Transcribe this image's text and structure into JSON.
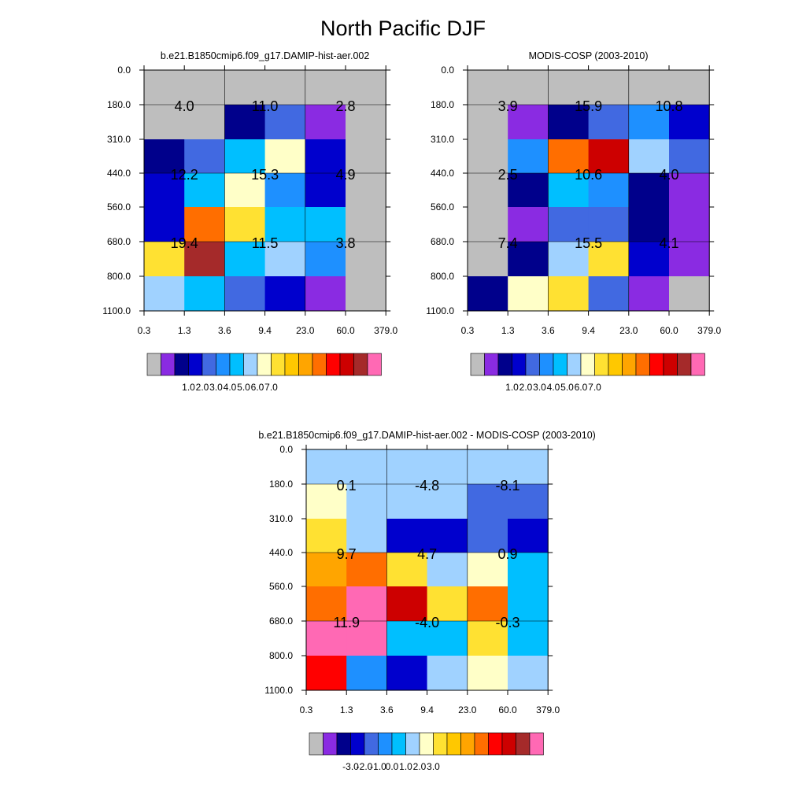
{
  "title": "North Pacific DJF",
  "chart_data": [
    {
      "type": "heatmap",
      "title": "b.e21.B1850cmip6.f09_g17.DAMIP-hist-aer.002",
      "x_ticks": [
        "0.3",
        "1.3",
        "3.6",
        "9.4",
        "23.0",
        "60.0",
        "379.0"
      ],
      "y_ticks": [
        "0.0",
        "180.0",
        "310.0",
        "440.0",
        "560.0",
        "680.0",
        "800.0",
        "1100.0"
      ],
      "cell_colors": [
        [
          "#bebebe",
          "#bebebe",
          "#bebebe",
          "#bebebe",
          "#bebebe",
          "#bebebe"
        ],
        [
          "#bebebe",
          "#bebebe",
          "#00008b",
          "#4169e1",
          "#8a2be2",
          "#bebebe"
        ],
        [
          "#00008b",
          "#4169e1",
          "#00bfff",
          "#ffffc8",
          "#0000cd",
          "#bebebe"
        ],
        [
          "#0000cd",
          "#00bfff",
          "#ffffc8",
          "#1e90ff",
          "#0000cd",
          "#bebebe"
        ],
        [
          "#0000cd",
          "#ff6e00",
          "#ffe132",
          "#00bfff",
          "#00bfff",
          "#bebebe"
        ],
        [
          "#ffe132",
          "#a52a2a",
          "#00bfff",
          "#a0d2ff",
          "#1e90ff",
          "#bebebe"
        ],
        [
          "#a0d2ff",
          "#00bfff",
          "#4169e1",
          "#0000cd",
          "#8a2be2",
          "#bebebe"
        ]
      ],
      "block_values": [
        [
          "4.0",
          "11.0",
          "2.8"
        ],
        [
          "12.2",
          "15.3",
          "4.9"
        ],
        [
          "19.4",
          "11.5",
          "3.8"
        ]
      ],
      "colorbar_labels": [
        "1.0",
        "2.0",
        "3.0",
        "4.0",
        "5.0",
        "6.0",
        "7.0"
      ]
    },
    {
      "type": "heatmap",
      "title": "MODIS-COSP (2003-2010)",
      "x_ticks": [
        "0.3",
        "1.3",
        "3.6",
        "9.4",
        "23.0",
        "60.0",
        "379.0"
      ],
      "y_ticks": [
        "0.0",
        "180.0",
        "310.0",
        "440.0",
        "560.0",
        "680.0",
        "800.0",
        "1100.0"
      ],
      "cell_colors": [
        [
          "#bebebe",
          "#bebebe",
          "#bebebe",
          "#bebebe",
          "#bebebe",
          "#bebebe"
        ],
        [
          "#bebebe",
          "#8a2be2",
          "#00008b",
          "#4169e1",
          "#1e90ff",
          "#0000cd"
        ],
        [
          "#bebebe",
          "#1e90ff",
          "#ff6e00",
          "#cd0000",
          "#a0d2ff",
          "#4169e1"
        ],
        [
          "#bebebe",
          "#00008b",
          "#00bfff",
          "#1e90ff",
          "#00008b",
          "#8a2be2"
        ],
        [
          "#bebebe",
          "#8a2be2",
          "#4169e1",
          "#4169e1",
          "#00008b",
          "#8a2be2"
        ],
        [
          "#bebebe",
          "#00008b",
          "#a0d2ff",
          "#ffe132",
          "#0000cd",
          "#8a2be2"
        ],
        [
          "#00008b",
          "#ffffc8",
          "#ffe132",
          "#4169e1",
          "#8a2be2",
          "#bebebe"
        ]
      ],
      "block_values": [
        [
          "3.9",
          "15.9",
          "10.8"
        ],
        [
          "2.5",
          "10.6",
          "4.0"
        ],
        [
          "7.4",
          "15.5",
          "4.1"
        ]
      ],
      "colorbar_labels": [
        "1.0",
        "2.0",
        "3.0",
        "4.0",
        "5.0",
        "6.0",
        "7.0"
      ]
    },
    {
      "type": "heatmap",
      "title": "b.e21.B1850cmip6.f09_g17.DAMIP-hist-aer.002 - MODIS-COSP (2003-2010)",
      "x_ticks": [
        "0.3",
        "1.3",
        "3.6",
        "9.4",
        "23.0",
        "60.0",
        "379.0"
      ],
      "y_ticks": [
        "0.0",
        "180.0",
        "310.0",
        "440.0",
        "560.0",
        "680.0",
        "800.0",
        "1100.0"
      ],
      "cell_colors": [
        [
          "#a0d2ff",
          "#a0d2ff",
          "#a0d2ff",
          "#a0d2ff",
          "#a0d2ff",
          "#a0d2ff"
        ],
        [
          "#ffffc8",
          "#a0d2ff",
          "#a0d2ff",
          "#a0d2ff",
          "#4169e1",
          "#4169e1"
        ],
        [
          "#ffe132",
          "#a0d2ff",
          "#0000cd",
          "#0000cd",
          "#4169e1",
          "#0000cd"
        ],
        [
          "#ffa500",
          "#ff6e00",
          "#ffe132",
          "#a0d2ff",
          "#ffffc8",
          "#00bfff"
        ],
        [
          "#ff6e00",
          "#ff69b4",
          "#cd0000",
          "#ffe132",
          "#ff6e00",
          "#00bfff"
        ],
        [
          "#ff69b4",
          "#ff69b4",
          "#00bfff",
          "#00bfff",
          "#ffe132",
          "#00bfff"
        ],
        [
          "#ff0000",
          "#1e90ff",
          "#0000cd",
          "#a0d2ff",
          "#ffffc8",
          "#a0d2ff"
        ]
      ],
      "block_values": [
        [
          "0.1",
          "-4.8",
          "-8.1"
        ],
        [
          "9.7",
          "4.7",
          "0.9"
        ],
        [
          "11.9",
          "-4.0",
          "-0.3"
        ]
      ],
      "colorbar_labels": [
        "-3.0",
        "-2.0",
        "-1.0",
        "0.0",
        "1.0",
        "2.0",
        "3.0"
      ]
    }
  ],
  "colorbar_colors": [
    "#bebebe",
    "#8a2be2",
    "#00008b",
    "#0000cd",
    "#4169e1",
    "#1e90ff",
    "#00bfff",
    "#a0d2ff",
    "#ffffc8",
    "#ffe132",
    "#ffc800",
    "#ffa500",
    "#ff6e00",
    "#ff0000",
    "#cd0000",
    "#a52a2a",
    "#ff69b4"
  ]
}
